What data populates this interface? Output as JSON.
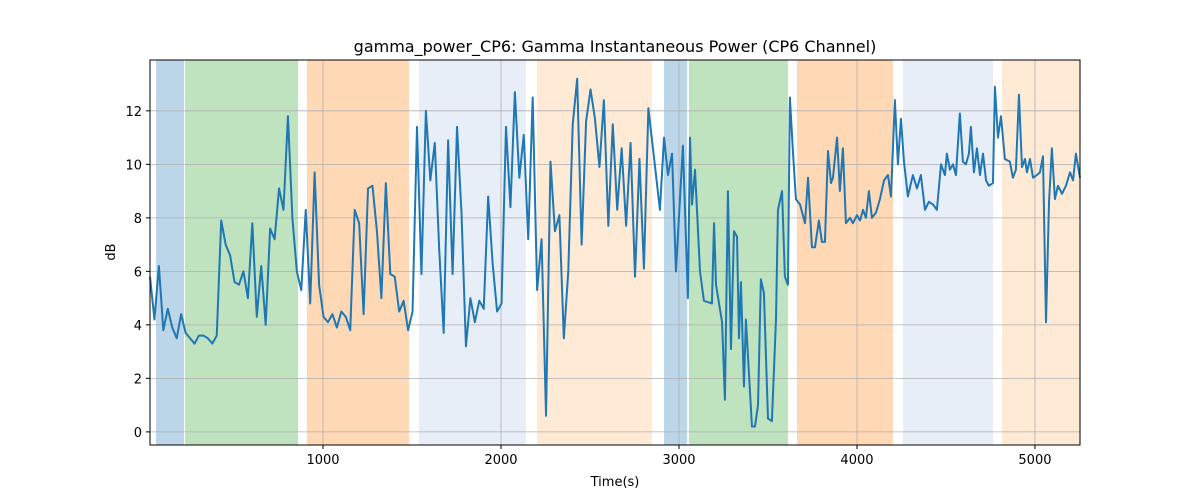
{
  "chart_data": {
    "type": "line",
    "title": "gamma_power_CP6: Gamma Instantaneous Power (CP6 Channel)",
    "x_label": "Time(s)",
    "y_label": "dB",
    "xlim": [
      28,
      5253
    ],
    "ylim": [
      -0.49,
      13.9
    ],
    "xticks": [
      1000,
      2000,
      3000,
      4000,
      5000
    ],
    "yticks": [
      0,
      2,
      4,
      6,
      8,
      10,
      12
    ],
    "grid": true,
    "span_alpha": 0.3,
    "spans": [
      {
        "start": 62,
        "end": 219,
        "color": "#1f77b4"
      },
      {
        "start": 225,
        "end": 860,
        "color": "#2ca02c"
      },
      {
        "start": 910,
        "end": 1483,
        "color": "#ff7f0e"
      },
      {
        "start": 1539,
        "end": 2140,
        "color": "#aec7e8"
      },
      {
        "start": 2202,
        "end": 2848,
        "color": "#ffbb78"
      },
      {
        "start": 2916,
        "end": 3045,
        "color": "#1f77b4"
      },
      {
        "start": 3056,
        "end": 3612,
        "color": "#2ca02c"
      },
      {
        "start": 3663,
        "end": 4202,
        "color": "#ff7f0e"
      },
      {
        "start": 4258,
        "end": 4764,
        "color": "#aec7e8"
      },
      {
        "start": 4815,
        "end": 5253,
        "color": "#ffbb78"
      }
    ],
    "series": [
      {
        "color": "#1f77b4",
        "x": [
          28,
          53,
          78,
          103,
          128,
          153,
          178,
          203,
          228,
          253,
          278,
          303,
          328,
          353,
          378,
          403,
          428,
          453,
          478,
          503,
          528,
          553,
          578,
          603,
          628,
          653,
          678,
          703,
          728,
          753,
          778,
          803,
          828,
          853,
          878,
          903,
          928,
          953,
          978,
          1003,
          1028,
          1053,
          1078,
          1103,
          1128,
          1153,
          1178,
          1203,
          1228,
          1253,
          1278,
          1303,
          1328,
          1353,
          1378,
          1403,
          1428,
          1453,
          1478,
          1503,
          1528,
          1553,
          1578,
          1603,
          1628,
          1653,
          1678,
          1703,
          1728,
          1753,
          1778,
          1803,
          1828,
          1853,
          1878,
          1903,
          1928,
          1953,
          1978,
          2003,
          2028,
          2053,
          2078,
          2103,
          2128,
          2153,
          2178,
          2203,
          2228,
          2253,
          2278,
          2303,
          2328,
          2353,
          2378,
          2403,
          2428,
          2453,
          2478,
          2503,
          2528,
          2553,
          2578,
          2603,
          2628,
          2653,
          2678,
          2703,
          2728,
          2753,
          2778,
          2803,
          2828,
          2893,
          2916,
          2938,
          2961,
          2983,
          3022,
          3050,
          3062,
          3073,
          3090,
          3118,
          3140,
          3185,
          3197,
          3208,
          3225,
          3242,
          3258,
          3275,
          3292,
          3309,
          3326,
          3337,
          3348,
          3365,
          3376,
          3410,
          3427,
          3444,
          3460,
          3477,
          3500,
          3522,
          3545,
          3556,
          3579,
          3595,
          3612,
          3623,
          3640,
          3657,
          3680,
          3708,
          3725,
          3747,
          3764,
          3786,
          3803,
          3820,
          3837,
          3854,
          3865,
          3888,
          3904,
          3921,
          3938,
          3961,
          3977,
          4000,
          4017,
          4034,
          4050,
          4067,
          4084,
          4107,
          4129,
          4152,
          4174,
          4191,
          4213,
          4230,
          4247,
          4264,
          4286,
          4314,
          4337,
          4359,
          4382,
          4404,
          4427,
          4449,
          4472,
          4494,
          4505,
          4522,
          4539,
          4556,
          4578,
          4595,
          4612,
          4629,
          4640,
          4657,
          4674,
          4691,
          4708,
          4725,
          4741,
          4764,
          4775,
          4792,
          4809,
          4831,
          4859,
          4876,
          4893,
          4910,
          4927,
          4944,
          4955,
          4972,
          4989,
          5011,
          5028,
          5045,
          5062,
          5079,
          5095,
          5112,
          5129,
          5152,
          5174,
          5197,
          5214,
          5230,
          5253
        ],
        "values": [
          5.8,
          4.2,
          6.2,
          3.8,
          4.6,
          3.9,
          3.5,
          4.4,
          3.7,
          3.5,
          3.3,
          3.6,
          3.6,
          3.5,
          3.3,
          3.6,
          7.9,
          7.0,
          6.6,
          5.6,
          5.5,
          6.0,
          5.0,
          7.8,
          4.3,
          6.2,
          4.0,
          7.6,
          7.2,
          9.1,
          8.3,
          11.8,
          8.0,
          6.0,
          5.3,
          8.3,
          4.8,
          9.7,
          5.5,
          4.3,
          4.1,
          4.4,
          3.9,
          4.5,
          4.3,
          3.8,
          8.3,
          7.8,
          4.4,
          9.1,
          9.2,
          7.5,
          5.0,
          9.3,
          5.9,
          5.8,
          4.5,
          4.9,
          3.8,
          4.5,
          11.4,
          5.9,
          12.0,
          9.4,
          10.8,
          6.8,
          3.7,
          10.9,
          5.9,
          11.4,
          8.2,
          3.2,
          5.0,
          4.1,
          4.9,
          4.6,
          8.8,
          6.3,
          4.5,
          4.8,
          11.4,
          8.4,
          12.7,
          9.5,
          11.1,
          7.2,
          12.5,
          5.3,
          7.2,
          0.6,
          10.1,
          7.5,
          8.1,
          3.5,
          6.0,
          11.5,
          13.2,
          7.0,
          11.6,
          12.8,
          11.7,
          9.9,
          12.4,
          7.7,
          11.5,
          8.3,
          10.6,
          7.7,
          10.8,
          5.8,
          10.2,
          6.1,
          12.1,
          8.3,
          11.0,
          9.6,
          10.4,
          6.0,
          10.7,
          5.0,
          11.0,
          8.5,
          9.8,
          6.0,
          4.9,
          4.8,
          7.8,
          5.5,
          4.8,
          4.1,
          1.2,
          9.0,
          3.1,
          7.5,
          7.3,
          3.5,
          5.6,
          1.7,
          4.2,
          0.2,
          0.2,
          1.0,
          5.7,
          5.2,
          0.5,
          0.4,
          4.2,
          8.3,
          9.0,
          5.8,
          5.5,
          12.5,
          10.5,
          8.7,
          8.5,
          7.8,
          9.5,
          6.9,
          6.9,
          7.9,
          7.1,
          7.1,
          10.5,
          9.3,
          9.5,
          11.0,
          9.0,
          10.6,
          7.8,
          8.0,
          7.8,
          8.1,
          7.9,
          8.3,
          8.0,
          9.0,
          8.0,
          8.2,
          8.7,
          9.4,
          9.6,
          8.8,
          12.4,
          10.0,
          11.7,
          10.1,
          8.8,
          9.6,
          9.1,
          9.6,
          8.3,
          8.6,
          8.5,
          8.3,
          10.0,
          9.6,
          10.4,
          9.8,
          10.0,
          9.6,
          11.9,
          10.1,
          10.0,
          10.4,
          11.4,
          9.7,
          10.6,
          9.6,
          10.4,
          9.4,
          9.2,
          9.3,
          12.9,
          11.0,
          11.8,
          10.2,
          10.1,
          9.5,
          9.8,
          12.6,
          9.9,
          10.2,
          9.7,
          10.2,
          9.5,
          9.6,
          9.7,
          10.3,
          4.1,
          8.6,
          10.6,
          8.7,
          9.2,
          8.9,
          9.2,
          9.7,
          9.4,
          10.4,
          9.5
        ]
      }
    ]
  }
}
